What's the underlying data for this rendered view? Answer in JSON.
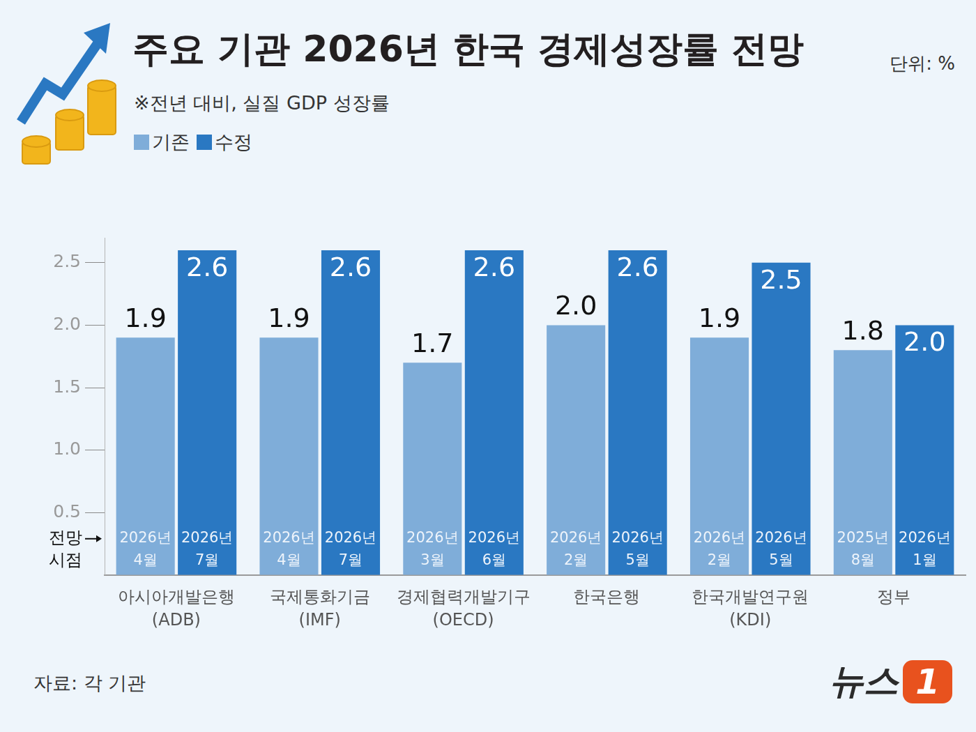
{
  "chart_data": {
    "type": "bar",
    "title": "주요 기관 2026년 한국 경제성장률 전망",
    "unit": "단위: %",
    "subtitle": "※전년 대비, 실질 GDP 성장률",
    "categories": [
      "아시아개발은행 (ADB)",
      "국제통화기금 (IMF)",
      "경제협력개발기구 (OECD)",
      "한국은행",
      "한국개발연구원 (KDI)",
      "정부"
    ],
    "series": [
      {
        "name": "기존",
        "color": "#7fadd9",
        "values": [
          1.9,
          1.9,
          1.7,
          2.0,
          1.9,
          1.8
        ],
        "value_labels": [
          "1.9",
          "1.9",
          "1.7",
          "2.0",
          "1.9",
          "1.8"
        ],
        "dates": [
          "2026년 4월",
          "2026년 4월",
          "2026년 3월",
          "2026년 2월",
          "2026년 2월",
          "2025년 8월"
        ]
      },
      {
        "name": "수정",
        "color": "#2a78c2",
        "values": [
          2.6,
          2.6,
          2.6,
          2.6,
          2.5,
          2.0
        ],
        "value_labels": [
          "2.6",
          "2.6",
          "2.6",
          "2.6",
          "2.5",
          "2.0"
        ],
        "dates": [
          "2026년 7월",
          "2026년 7월",
          "2026년 6월",
          "2026년 5월",
          "2026년 5월",
          "2026년 1월"
        ]
      }
    ],
    "dates_label": "전망 시점",
    "ylim": [
      0,
      2.7
    ],
    "yticks": [
      0.5,
      {
        "value": 1,
        "label": "1.0"
      },
      1.5,
      {
        "value": 2,
        "label": "2.0"
      },
      2.5
    ],
    "grid": false,
    "legend": "top left",
    "data_labels": true,
    "source": "자료: 각 기관",
    "logo": "뉴스1"
  }
}
